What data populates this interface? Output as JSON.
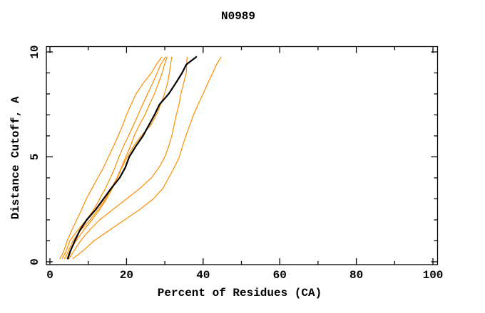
{
  "window": {
    "title": "N0989"
  },
  "chart_data": {
    "type": "line",
    "title": "N0989",
    "xlabel": "Percent of Residues (CA)",
    "ylabel": "Distance Cutoff, A",
    "xlim": [
      0,
      100
    ],
    "ylim": [
      0,
      10
    ],
    "x_major_ticks": [
      0,
      20,
      40,
      60,
      80,
      100
    ],
    "x_minor_ticks": [
      10,
      30,
      50,
      70,
      90
    ],
    "y_major_ticks": [
      0,
      5,
      10
    ],
    "y_minor_ticks": [
      1,
      2,
      3,
      4,
      6,
      7,
      8,
      9
    ],
    "grid": false,
    "legend_position": "none",
    "ticks_inward_all_borders": true,
    "colors": {
      "model_curve": "#000000",
      "prediction_curves": "#ff8c00",
      "axis": "#000000",
      "text": "#000000",
      "background": "#ffffff"
    },
    "y_samples": [
      0.15,
      0.5,
      1,
      1.5,
      2,
      2.5,
      3,
      3.5,
      4,
      4.5,
      5,
      5.5,
      6,
      6.5,
      7,
      7.5,
      8,
      8.5,
      9,
      9.4,
      9.76
    ],
    "series": [
      {
        "name": "model-black",
        "color": "#000000",
        "stroke_width": 2.2,
        "x": [
          4.7,
          5.3,
          6.5,
          7.8,
          9.6,
          12.0,
          14.0,
          16.0,
          18.2,
          19.7,
          20.7,
          22.4,
          24.3,
          25.8,
          27.3,
          28.6,
          31.0,
          32.8,
          34.5,
          35.6,
          38.2
        ]
      },
      {
        "name": "prediction-orange-1",
        "color": "#ff8c00",
        "stroke_width": 1.2,
        "x": [
          2.6,
          3.6,
          4.5,
          5.7,
          7.0,
          8.3,
          9.5,
          11.0,
          12.5,
          14.0,
          15.3,
          16.6,
          17.8,
          19.0,
          20.0,
          21.2,
          22.5,
          24.3,
          26.5,
          27.8,
          29.2
        ]
      },
      {
        "name": "prediction-orange-2",
        "color": "#ff8c00",
        "stroke_width": 1.2,
        "x": [
          3.2,
          4.2,
          5.2,
          7.2,
          9.5,
          11.5,
          13.0,
          14.5,
          15.8,
          17.0,
          18.0,
          19.2,
          20.5,
          21.8,
          23.0,
          24.2,
          25.5,
          26.8,
          28.0,
          28.9,
          30.2
        ]
      },
      {
        "name": "prediction-orange-3",
        "color": "#ff8c00",
        "stroke_width": 1.2,
        "x": [
          3.8,
          4.8,
          6.0,
          8.0,
          10.5,
          12.6,
          14.5,
          16.0,
          17.5,
          18.7,
          19.8,
          21.0,
          22.0,
          23.3,
          24.8,
          26.0,
          27.3,
          28.3,
          29.3,
          29.9,
          30.6
        ]
      },
      {
        "name": "prediction-orange-4",
        "color": "#ff8c00",
        "stroke_width": 1.2,
        "x": [
          4.4,
          5.2,
          6.8,
          8.8,
          11.0,
          13.0,
          14.8,
          16.3,
          17.6,
          18.8,
          20.2,
          21.8,
          23.8,
          26.3,
          27.8,
          28.9,
          29.9,
          30.7,
          31.2,
          31.5,
          31.8
        ]
      },
      {
        "name": "prediction-orange-5",
        "color": "#ff8c00",
        "stroke_width": 1.2,
        "x": [
          5.0,
          6.2,
          8.0,
          10.3,
          13.0,
          16.5,
          20.0,
          23.5,
          26.5,
          28.5,
          30.0,
          31.0,
          31.8,
          32.4,
          33.0,
          33.7,
          34.2,
          34.9,
          35.6,
          35.7,
          35.8
        ]
      },
      {
        "name": "prediction-orange-6",
        "color": "#ff8c00",
        "stroke_width": 1.2,
        "x": [
          6.0,
          8.5,
          11.5,
          15.5,
          19.5,
          23.5,
          27.0,
          29.5,
          31.0,
          32.5,
          33.8,
          34.6,
          35.5,
          36.5,
          37.5,
          38.7,
          40.0,
          41.2,
          42.5,
          43.5,
          44.7
        ]
      }
    ]
  }
}
